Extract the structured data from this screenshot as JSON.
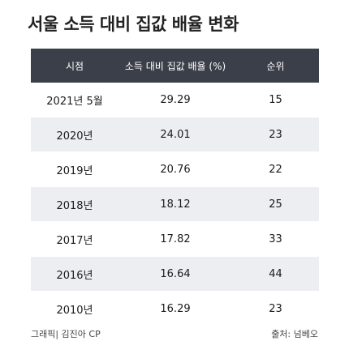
{
  "title": "서울 소득 대비 집값 배율 변화",
  "chart_data": {
    "type": "table",
    "columns": [
      "시점",
      "소득 대비 집값 배율 (%)",
      "순위"
    ],
    "rows": [
      [
        "2021년 5월",
        "29.29",
        "15"
      ],
      [
        "2020년",
        "24.01",
        "23"
      ],
      [
        "2019년",
        "20.76",
        "22"
      ],
      [
        "2018년",
        "18.12",
        "25"
      ],
      [
        "2017년",
        "17.82",
        "33"
      ],
      [
        "2016년",
        "16.64",
        "44"
      ],
      [
        "2010년",
        "16.29",
        "23"
      ]
    ]
  },
  "footer": {
    "credit": "그래픽| 김진아 CP",
    "source": "출처: 넘베오"
  },
  "colors": {
    "header_bg": "#3b3f4a",
    "row_alt": "#eceef1"
  }
}
